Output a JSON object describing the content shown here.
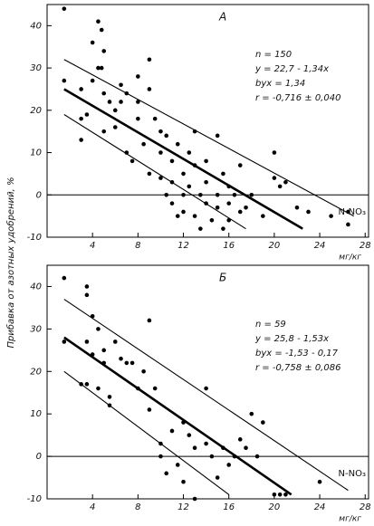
{
  "chart_data": [
    {
      "type": "scatter",
      "panel_label": "А",
      "ylabel": "Прибавка от азотных удобрений, %",
      "xlabel": "мг/кг",
      "annotations": [
        "n = 150",
        "y = 22,7 - 1,34x",
        "byx = 1,34",
        "r = -0,716 ± 0,040"
      ],
      "side_label": "N-NO₃",
      "xlim": [
        0,
        28.3
      ],
      "ylim": [
        -10,
        45
      ],
      "xticks": [
        4,
        8,
        12,
        16,
        20,
        24,
        28
      ],
      "yticks": [
        -10,
        0,
        10,
        20,
        30,
        40
      ],
      "reference_line": 0,
      "color": "#000000",
      "x": [
        1.5,
        1.5,
        3,
        3,
        3,
        3.5,
        4,
        4,
        4.5,
        4.5,
        4.8,
        4.8,
        5,
        5,
        5,
        5.5,
        6,
        6,
        6.5,
        6.5,
        7,
        7,
        7.5,
        8,
        8,
        8,
        8.5,
        9,
        9,
        9,
        9.5,
        10,
        10,
        10,
        10.5,
        10.5,
        11,
        11,
        11,
        11.5,
        11.5,
        12,
        12,
        12,
        12.5,
        12.5,
        13,
        13,
        13,
        13.5,
        13.5,
        14,
        14,
        14,
        14.5,
        15,
        15,
        15,
        15.5,
        15.5,
        16,
        16,
        16,
        16.5,
        17,
        17,
        17.5,
        18,
        19,
        20,
        20,
        20.5,
        21,
        22,
        23,
        25,
        26.5,
        26.5
      ],
      "y": [
        44,
        27,
        25,
        18,
        13,
        19,
        36,
        27,
        30,
        41,
        39,
        30,
        34,
        24,
        15,
        22,
        20,
        16,
        26,
        22,
        10,
        24,
        8,
        28,
        22,
        18,
        12,
        25,
        32,
        5,
        18,
        10,
        4,
        15,
        14,
        0,
        -2,
        8,
        3,
        -5,
        12,
        5,
        0,
        -4,
        10,
        2,
        -5,
        7,
        15,
        0,
        -8,
        3,
        -2,
        8,
        -6,
        14,
        0,
        -3,
        -8,
        5,
        -2,
        2,
        -6,
        0,
        7,
        -4,
        -3,
        0,
        -5,
        10,
        4,
        2,
        3,
        -3,
        -4,
        -5,
        -7,
        -4
      ],
      "fit_lines": [
        {
          "x": [
            1.5,
            27
          ],
          "y": [
            32,
            -5
          ]
        },
        {
          "x": [
            1.5,
            22.5
          ],
          "y": [
            25,
            -8
          ]
        },
        {
          "x": [
            1.5,
            17.5
          ],
          "y": [
            19,
            -8
          ]
        }
      ]
    },
    {
      "type": "scatter",
      "panel_label": "Б",
      "xlabel": "мг/кг",
      "annotations": [
        "n = 59",
        "y = 25,8 - 1,53x",
        "byx = -1,53 - 0,17",
        "r = -0,758 ± 0,086"
      ],
      "side_label": "N-NO₃",
      "xlim": [
        0,
        28.3
      ],
      "ylim": [
        -10,
        45
      ],
      "xticks": [
        4,
        8,
        12,
        16,
        20,
        24,
        28
      ],
      "yticks": [
        -10,
        0,
        10,
        20,
        30,
        40
      ],
      "reference_line": 0,
      "color": "#000000",
      "x": [
        1.5,
        1.5,
        3,
        3.5,
        3.5,
        3.5,
        3.5,
        4,
        4,
        4.5,
        4.5,
        5,
        5,
        5.5,
        5.5,
        6,
        6.5,
        7,
        7.5,
        8,
        8.5,
        9,
        9,
        9.5,
        10,
        10,
        10.5,
        11,
        11.5,
        12,
        12,
        12.5,
        13,
        13,
        14,
        14,
        14.5,
        15,
        15.5,
        16,
        16.5,
        17,
        17.5,
        18,
        18.5,
        19,
        20,
        20.5,
        21,
        24
      ],
      "y": [
        42,
        27,
        17,
        40,
        38,
        27,
        17,
        24,
        33,
        30,
        16,
        22,
        25,
        14,
        12,
        27,
        23,
        22,
        22,
        16,
        20,
        32,
        11,
        16,
        3,
        0,
        -4,
        6,
        -2,
        8,
        -6,
        5,
        -10,
        2,
        16,
        3,
        0,
        -5,
        2,
        -2,
        0,
        4,
        2,
        10,
        0,
        8,
        -9,
        -9,
        -9,
        -6
      ],
      "fit_lines": [
        {
          "x": [
            1.5,
            26.5
          ],
          "y": [
            37,
            -8
          ]
        },
        {
          "x": [
            1.5,
            21.5
          ],
          "y": [
            28,
            -9
          ]
        },
        {
          "x": [
            1.5,
            16
          ],
          "y": [
            20,
            -9
          ]
        }
      ]
    }
  ]
}
